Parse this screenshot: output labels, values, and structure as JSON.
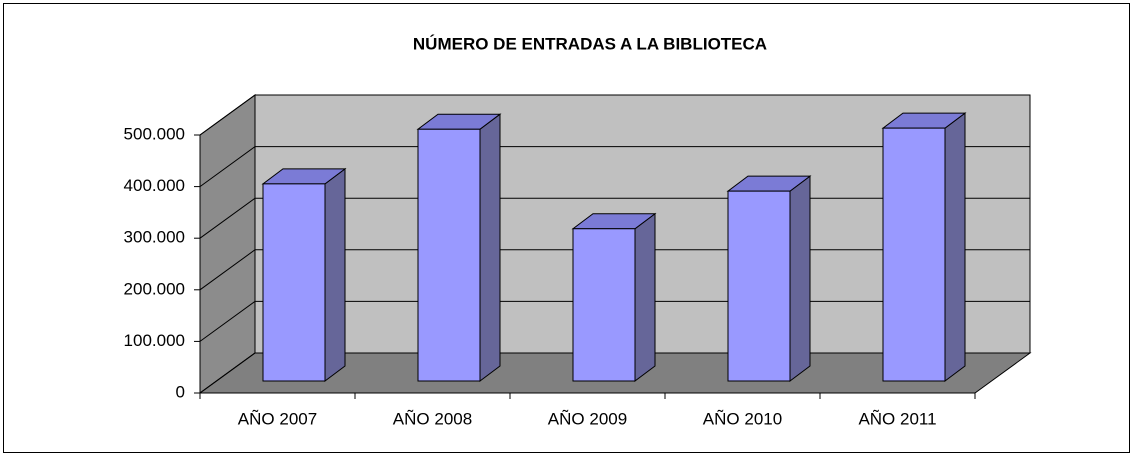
{
  "chart_data": {
    "type": "bar3d",
    "title": "NÚMERO DE ENTRADAS A LA BIBLIOTECA",
    "categories": [
      "AÑO 2007",
      "AÑO 2008",
      "AÑO 2009",
      "AÑO 2010",
      "AÑO 2011"
    ],
    "values": [
      382000,
      488000,
      295000,
      368000,
      490000
    ],
    "color": "#9999ff",
    "ylim": [
      0,
      500000
    ],
    "yticks": [
      0,
      {
        "value": 100000,
        "label": "100.000"
      },
      {
        "value": 200000,
        "label": "200.000"
      },
      {
        "value": 300000,
        "label": "300.000"
      },
      {
        "value": 400000,
        "label": "400.000"
      },
      {
        "value": 500000,
        "label": "500.000"
      }
    ],
    "grid": true
  }
}
